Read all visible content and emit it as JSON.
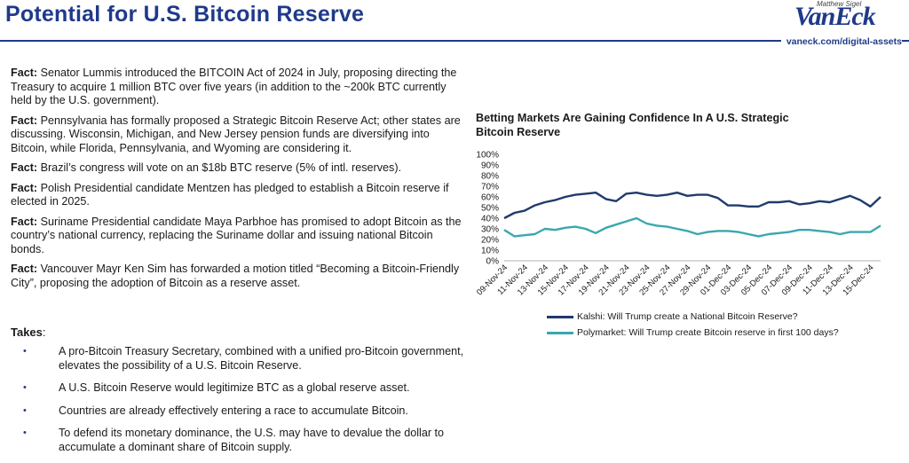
{
  "header": {
    "title": "Potential for U.S. Bitcoin Reserve",
    "presenter": "Matthew Sigel",
    "logo": "VanEck",
    "url": "vaneck.com/digital-assets"
  },
  "facts": [
    {
      "label": "Fact:",
      "text": " Senator Lummis introduced the BITCOIN Act of 2024 in July, proposing directing the Treasury to acquire 1 million BTC over five years (in addition to the ~200k BTC currently held by the U.S. government)."
    },
    {
      "label": "Fact:",
      "text": " Pennsylvania has formally proposed a Strategic Bitcoin Reserve Act; other states are discussing. Wisconsin, Michigan, and New Jersey pension funds are diversifying into Bitcoin, while Florida, Pennsylvania, and Wyoming are considering it."
    },
    {
      "label": "Fact:",
      "text": " Brazil’s congress will vote on an $18b BTC reserve (5% of intl. reserves)."
    },
    {
      "label": "Fact:",
      "text": " Polish Presidential candidate Mentzen has pledged to establish a Bitcoin reserve if elected in 2025."
    },
    {
      "label": "Fact:",
      "text": " Suriname Presidential candidate Maya Parbhoe has promised to adopt Bitcoin as the country’s national currency, replacing the Suriname dollar and issuing national Bitcoin bonds."
    },
    {
      "label": "Fact:",
      "text": " Vancouver Mayr Ken Sim has forwarded a motion titled “Becoming a Bitcoin-Friendly City”, proposing the adoption of Bitcoin as a reserve asset."
    }
  ],
  "takes": {
    "title": "Takes",
    "colon": ":",
    "bullet": "•",
    "items": [
      "A pro-Bitcoin Treasury Secretary, combined with a unified pro-Bitcoin government, elevates the possibility of a U.S. Bitcoin Reserve.",
      "A U.S. Bitcoin Reserve would legitimize BTC as a global reserve asset.",
      "Countries are already effectively entering a race to accumulate Bitcoin.",
      "To defend its monetary dominance, the U.S. may have to devalue the dollar to accumulate a dominant share of Bitcoin supply."
    ]
  },
  "chart_data": {
    "type": "line",
    "title": "Betting Markets Are Gaining Confidence In A U.S. Strategic Bitcoin Reserve",
    "xlabel": "",
    "ylabel": "",
    "ylim": [
      0,
      100
    ],
    "y_ticks": [
      "0%",
      "10%",
      "20%",
      "30%",
      "40%",
      "50%",
      "60%",
      "70%",
      "80%",
      "90%",
      "100%"
    ],
    "y_tick_values": [
      0,
      10,
      20,
      30,
      40,
      50,
      60,
      70,
      80,
      90,
      100
    ],
    "x_tick_labels": [
      "09-Nov-24",
      "11-Nov-24",
      "13-Nov-24",
      "15-Nov-24",
      "17-Nov-24",
      "19-Nov-24",
      "21-Nov-24",
      "23-Nov-24",
      "25-Nov-24",
      "27-Nov-24",
      "29-Nov-24",
      "01-Dec-24",
      "03-Dec-24",
      "05-Dec-24",
      "07-Dec-24",
      "09-Dec-24",
      "11-Dec-24",
      "13-Dec-24",
      "15-Dec-24"
    ],
    "x": [
      "09-Nov-24",
      "10-Nov-24",
      "11-Nov-24",
      "12-Nov-24",
      "13-Nov-24",
      "14-Nov-24",
      "15-Nov-24",
      "16-Nov-24",
      "17-Nov-24",
      "18-Nov-24",
      "19-Nov-24",
      "20-Nov-24",
      "21-Nov-24",
      "22-Nov-24",
      "23-Nov-24",
      "24-Nov-24",
      "25-Nov-24",
      "26-Nov-24",
      "27-Nov-24",
      "28-Nov-24",
      "29-Nov-24",
      "30-Nov-24",
      "01-Dec-24",
      "02-Dec-24",
      "03-Dec-24",
      "04-Dec-24",
      "05-Dec-24",
      "06-Dec-24",
      "07-Dec-24",
      "08-Dec-24",
      "09-Dec-24",
      "10-Dec-24",
      "11-Dec-24",
      "12-Dec-24",
      "13-Dec-24",
      "14-Dec-24",
      "15-Dec-24",
      "16-Dec-24"
    ],
    "grid": false,
    "legend_position": "bottom",
    "series": [
      {
        "name": "Kalshi: Will Trump create a National Bitcoin Reserve?",
        "color": "#1f3a6e",
        "values": [
          40,
          45,
          47,
          52,
          55,
          57,
          60,
          62,
          63,
          64,
          58,
          56,
          63,
          64,
          62,
          61,
          62,
          64,
          61,
          62,
          62,
          59,
          52,
          52,
          51,
          51,
          55,
          55,
          56,
          53,
          54,
          56,
          55,
          58,
          61,
          57,
          51,
          60
        ]
      },
      {
        "name": "Polymarket: Will Trump create Bitcoin reserve in first 100 days?",
        "color": "#3aa7b0",
        "values": [
          29,
          23,
          24,
          25,
          30,
          29,
          31,
          32,
          30,
          26,
          31,
          34,
          37,
          40,
          35,
          33,
          32,
          30,
          28,
          25,
          27,
          28,
          28,
          27,
          25,
          23,
          25,
          26,
          27,
          29,
          29,
          28,
          27,
          25,
          27,
          27,
          27,
          33
        ]
      }
    ]
  }
}
